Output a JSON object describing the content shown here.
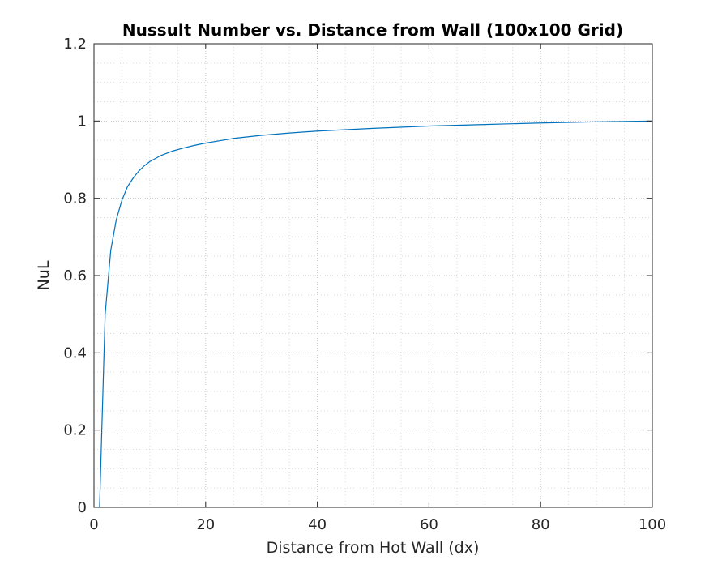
{
  "chart_data": {
    "type": "line",
    "title": "Nussult Number vs. Distance from Wall (100x100 Grid)",
    "xlabel": "Distance from Hot Wall (dx)",
    "ylabel": "NuL",
    "xlim": [
      0,
      100
    ],
    "ylim": [
      0,
      1.2
    ],
    "xticks": [
      0,
      20,
      40,
      60,
      80,
      100
    ],
    "yticks": [
      0,
      0.2,
      0.4,
      0.6,
      0.8,
      1,
      1.2
    ],
    "xtick_labels": [
      "0",
      "20",
      "40",
      "60",
      "80",
      "100"
    ],
    "ytick_labels": [
      "0",
      "0.2",
      "0.4",
      "0.6",
      "0.8",
      "1",
      "1.2"
    ],
    "grid": true,
    "minor_grid": true,
    "series": [
      {
        "color": "#0072bd",
        "x": [
          1,
          2,
          3,
          4,
          5,
          6,
          7,
          8,
          9,
          10,
          12,
          14,
          16,
          18,
          20,
          25,
          30,
          35,
          40,
          50,
          60,
          70,
          80,
          90,
          100
        ],
        "values": [
          0,
          0.5,
          0.665,
          0.745,
          0.795,
          0.83,
          0.852,
          0.87,
          0.884,
          0.895,
          0.911,
          0.922,
          0.93,
          0.937,
          0.943,
          0.955,
          0.963,
          0.969,
          0.974,
          0.981,
          0.987,
          0.991,
          0.995,
          0.998,
          1.0
        ]
      }
    ]
  }
}
